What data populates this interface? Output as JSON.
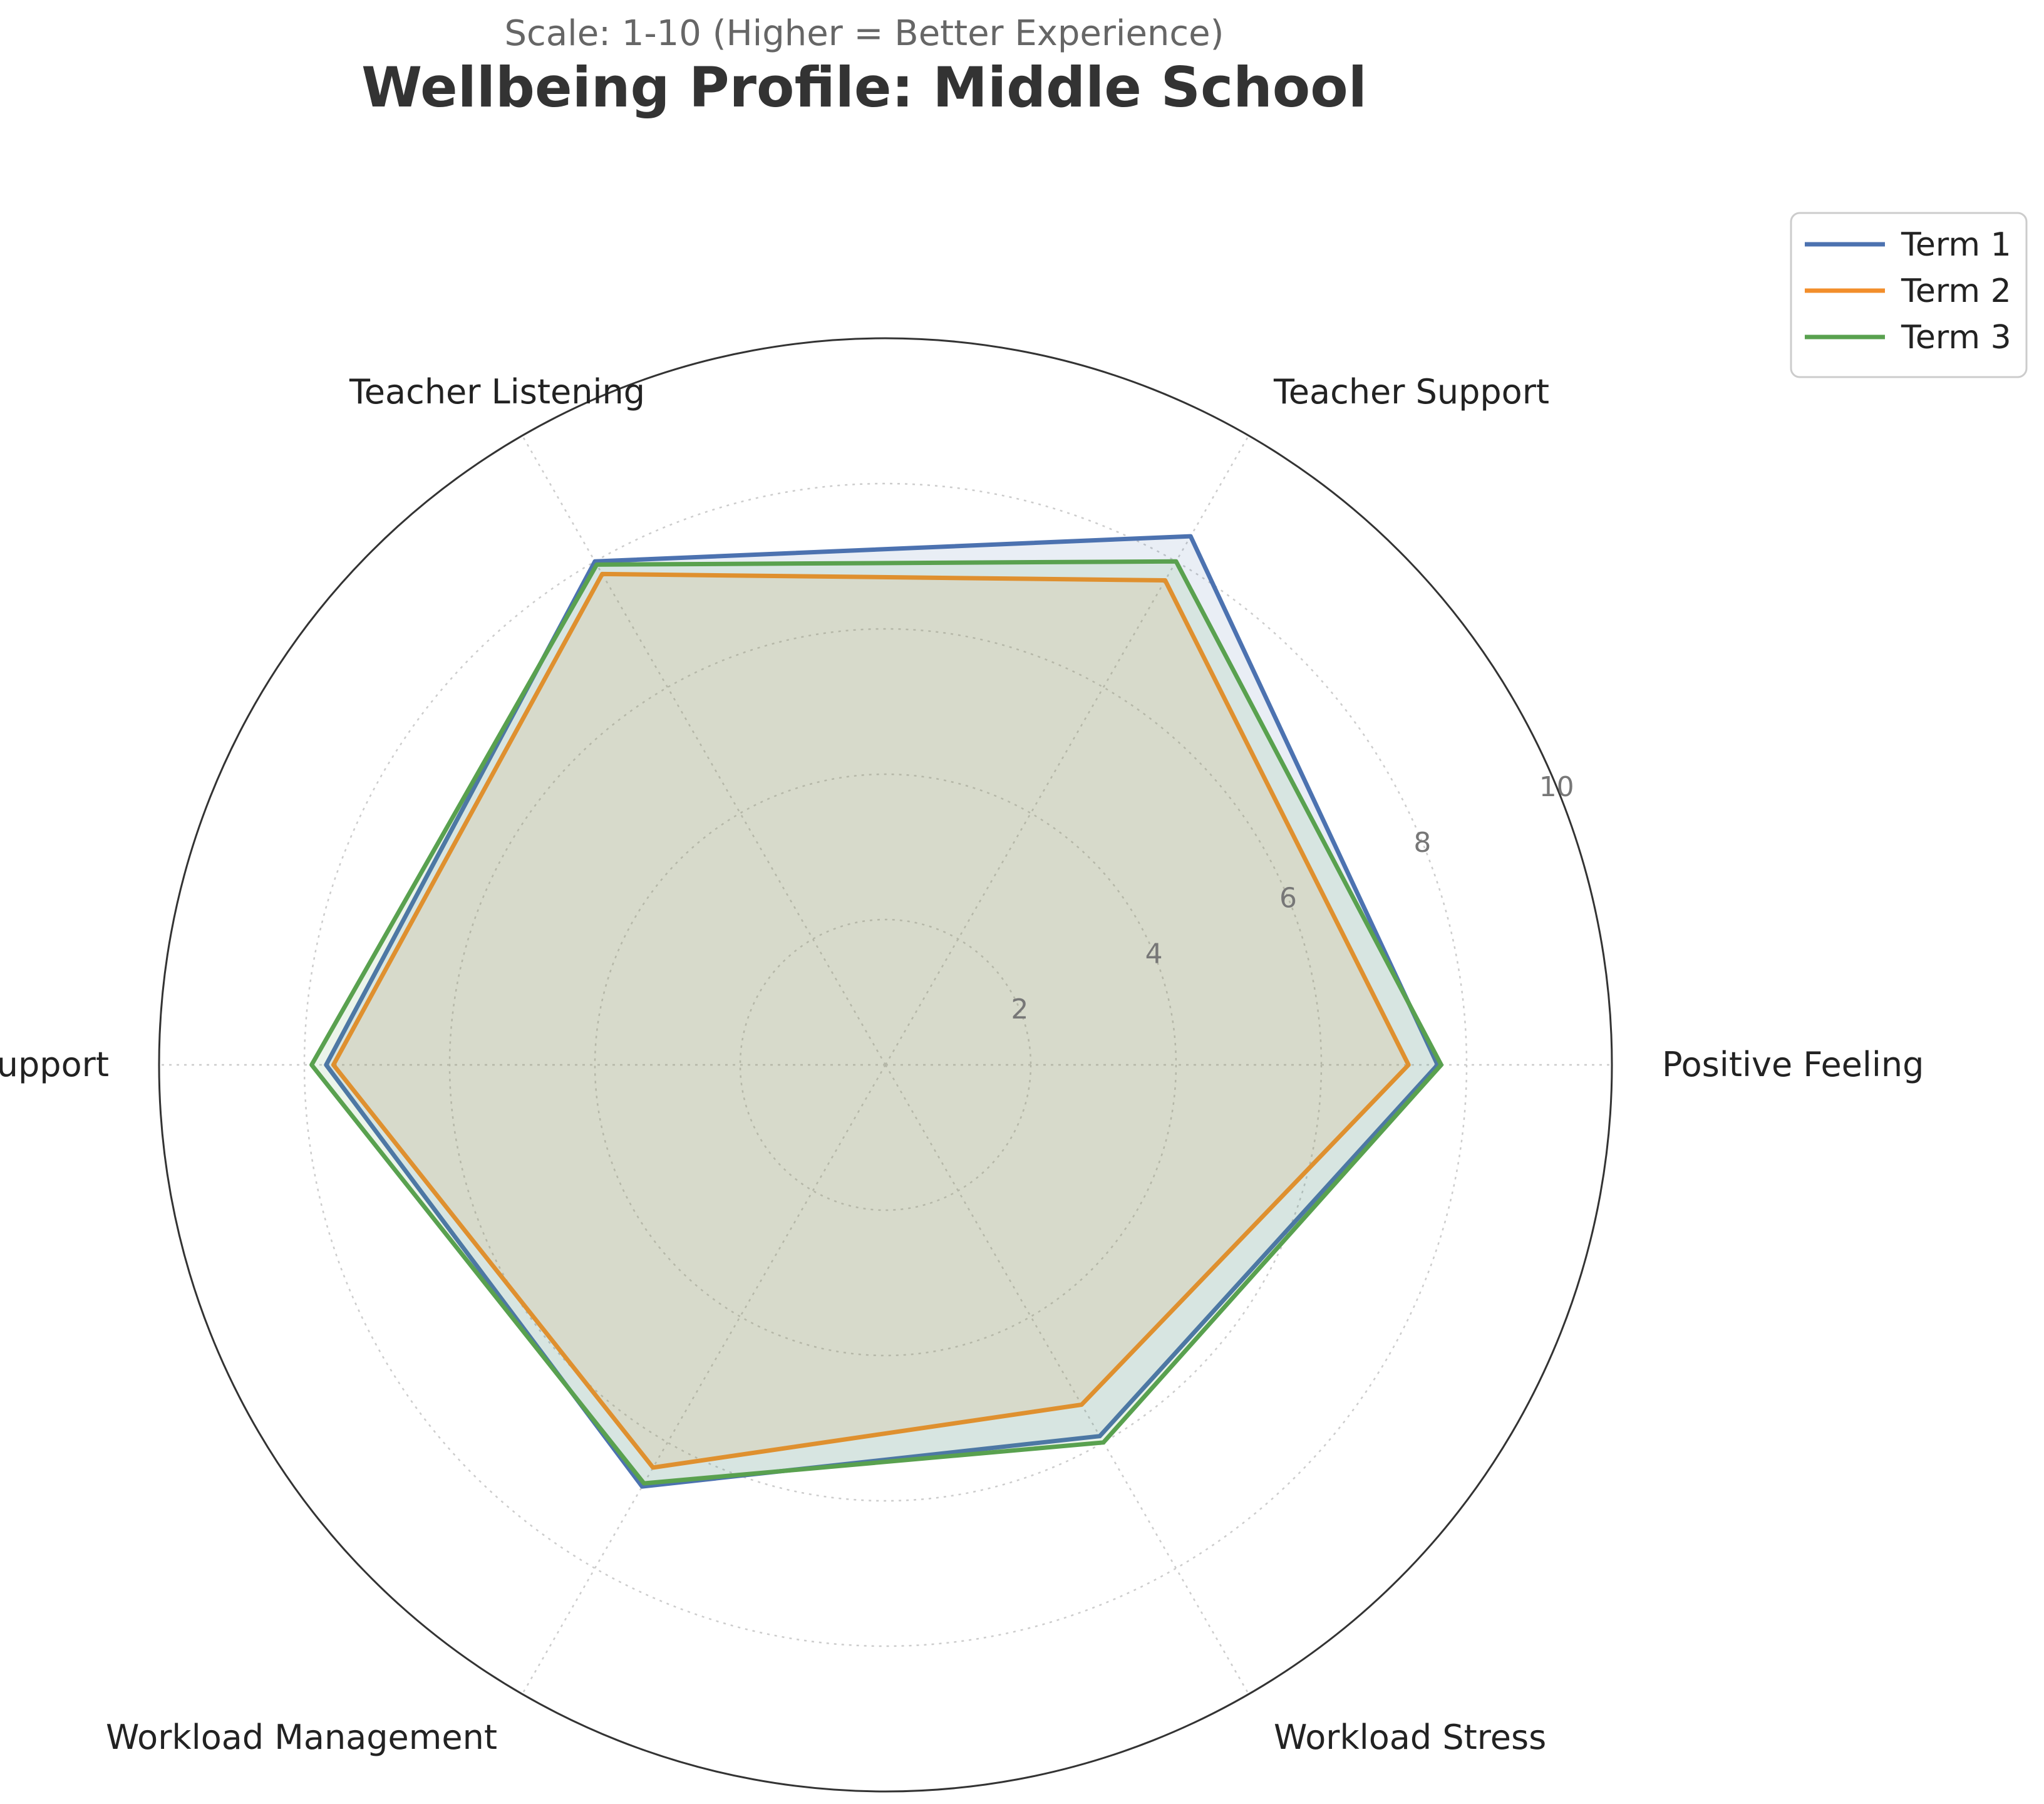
{
  "chart_data": {
    "type": "radar",
    "title": "Wellbeing Profile: Middle School",
    "subtitle": "Scale: 1-10 (Higher = Better Experience)",
    "categories": [
      "Positive Feeling",
      "Teacher Support",
      "Teacher Listening",
      "Peer Support",
      "Workload Management",
      "Workload Stress"
    ],
    "rlim": [
      0,
      10
    ],
    "rticks": [
      2,
      4,
      6,
      8,
      10
    ],
    "grid": true,
    "legend_position": "top-right",
    "series": [
      {
        "name": "Term 1",
        "color": "#4C72B0",
        "values": [
          7.6,
          8.4,
          8.0,
          7.7,
          6.7,
          5.9
        ]
      },
      {
        "name": "Term 2",
        "color": "#F28E2B",
        "values": [
          7.2,
          7.7,
          7.8,
          7.6,
          6.4,
          5.4
        ]
      },
      {
        "name": "Term 3",
        "color": "#59A14F",
        "values": [
          7.65,
          8.0,
          7.95,
          7.9,
          6.65,
          6.0
        ]
      }
    ]
  }
}
